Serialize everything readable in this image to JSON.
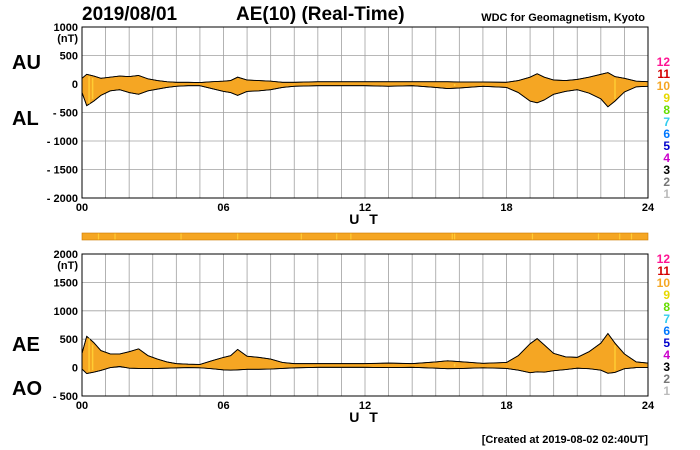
{
  "header": {
    "date": "2019/08/01",
    "title": "AE(10) (Real-Time)",
    "org": "WDC for Geomagnetism, Kyoto"
  },
  "footer": {
    "created": "[Created at 2019-08-02 02:40UT]"
  },
  "colors": {
    "fill": "#f5a623",
    "fill_bright": "#ffcc33",
    "grid": "#a0a0a0",
    "axis": "#000000"
  },
  "legend": {
    "items": [
      {
        "label": "12",
        "color": "#ff1493"
      },
      {
        "label": "11",
        "color": "#d40000"
      },
      {
        "label": "10",
        "color": "#f5a623"
      },
      {
        "label": "9",
        "color": "#e6d800"
      },
      {
        "label": "8",
        "color": "#66dd00"
      },
      {
        "label": "7",
        "color": "#33ccee"
      },
      {
        "label": "6",
        "color": "#0077ff"
      },
      {
        "label": "5",
        "color": "#0000cc"
      },
      {
        "label": "4",
        "color": "#cc00cc"
      },
      {
        "label": "3",
        "color": "#000000"
      },
      {
        "label": "2",
        "color": "#777777"
      },
      {
        "label": "1",
        "color": "#bbbbbb"
      }
    ]
  },
  "chart_data": [
    {
      "type": "area",
      "name": "AU / AL",
      "title": "AU / AL",
      "side_labels": {
        "upper": "AU",
        "lower": "AL"
      },
      "unit_label": "(nT)",
      "xlabel": "U T",
      "xlim": [
        0,
        24
      ],
      "ylim": [
        -2000,
        1000
      ],
      "yticks": [
        1000,
        500,
        0,
        -500,
        -1000,
        -1500,
        -2000
      ],
      "ytick_labels": [
        "1000",
        "500",
        "0",
        "- 500",
        "- 1000",
        "- 1500",
        "- 2000"
      ],
      "xticks": [
        0,
        6,
        12,
        18,
        24
      ],
      "xtick_labels": [
        "00",
        "06",
        "12",
        "18",
        "24"
      ],
      "x": [
        0,
        0.2,
        0.5,
        0.8,
        1.2,
        1.6,
        2.0,
        2.4,
        2.8,
        3.2,
        3.6,
        4.0,
        4.5,
        5.0,
        5.5,
        6.0,
        6.3,
        6.6,
        7.0,
        7.5,
        8.0,
        8.5,
        9.0,
        10.0,
        11.0,
        12.0,
        13.0,
        14.0,
        15.0,
        15.5,
        16.0,
        17.0,
        18.0,
        18.5,
        19.0,
        19.3,
        19.6,
        20.0,
        20.5,
        21.0,
        21.5,
        22.0,
        22.3,
        22.6,
        23.0,
        23.5,
        24.0
      ],
      "series": [
        {
          "name": "AU",
          "values": [
            100,
            170,
            140,
            100,
            120,
            140,
            130,
            150,
            90,
            60,
            40,
            30,
            30,
            25,
            40,
            50,
            60,
            120,
            70,
            60,
            50,
            30,
            30,
            40,
            40,
            40,
            40,
            40,
            40,
            40,
            35,
            35,
            30,
            60,
            120,
            180,
            120,
            70,
            60,
            80,
            120,
            170,
            200,
            130,
            100,
            50,
            40
          ]
        },
        {
          "name": "AL",
          "values": [
            -150,
            -380,
            -300,
            -200,
            -120,
            -100,
            -150,
            -180,
            -120,
            -90,
            -60,
            -40,
            -30,
            -30,
            -80,
            -130,
            -150,
            -200,
            -130,
            -120,
            -100,
            -60,
            -40,
            -30,
            -30,
            -30,
            -40,
            -30,
            -60,
            -80,
            -70,
            -40,
            -60,
            -150,
            -300,
            -330,
            -280,
            -180,
            -130,
            -100,
            -160,
            -260,
            -400,
            -300,
            -140,
            -50,
            -40
          ]
        }
      ]
    },
    {
      "type": "area",
      "name": "AE / AO",
      "title": "AE / AO",
      "side_labels": {
        "upper": "AE",
        "lower": "AO"
      },
      "unit_label": "(nT)",
      "xlabel": "U T",
      "xlim": [
        0,
        24
      ],
      "ylim": [
        -500,
        2000
      ],
      "yticks": [
        2000,
        1500,
        1000,
        500,
        0,
        -500
      ],
      "ytick_labels": [
        "2000",
        "1500",
        "1000",
        "500",
        "0",
        "- 500"
      ],
      "xticks": [
        0,
        6,
        12,
        18,
        24
      ],
      "xtick_labels": [
        "00",
        "06",
        "12",
        "18",
        "24"
      ],
      "x": [
        0,
        0.2,
        0.5,
        0.8,
        1.2,
        1.6,
        2.0,
        2.4,
        2.8,
        3.2,
        3.6,
        4.0,
        4.5,
        5.0,
        5.5,
        6.0,
        6.3,
        6.6,
        7.0,
        7.5,
        8.0,
        8.5,
        9.0,
        10.0,
        11.0,
        12.0,
        13.0,
        14.0,
        15.0,
        15.5,
        16.0,
        17.0,
        18.0,
        18.5,
        19.0,
        19.3,
        19.6,
        20.0,
        20.5,
        21.0,
        21.5,
        22.0,
        22.3,
        22.6,
        23.0,
        23.5,
        24.0
      ],
      "series": [
        {
          "name": "AE",
          "values": [
            250,
            550,
            440,
            300,
            240,
            240,
            280,
            330,
            210,
            150,
            100,
            70,
            60,
            55,
            120,
            180,
            210,
            320,
            200,
            180,
            150,
            90,
            70,
            70,
            70,
            70,
            80,
            70,
            100,
            120,
            105,
            75,
            90,
            210,
            420,
            510,
            400,
            250,
            190,
            180,
            280,
            430,
            600,
            430,
            240,
            100,
            80
          ]
        },
        {
          "name": "AO",
          "values": [
            -25,
            -105,
            -80,
            -50,
            0,
            20,
            -10,
            -15,
            -15,
            -15,
            -10,
            -5,
            0,
            -3,
            -20,
            -40,
            -45,
            -40,
            -30,
            -30,
            -25,
            -15,
            -5,
            5,
            5,
            5,
            0,
            5,
            -10,
            -20,
            -17,
            -3,
            -15,
            -45,
            -90,
            -75,
            -80,
            -55,
            -35,
            -10,
            -20,
            -45,
            -100,
            -85,
            -20,
            0,
            0
          ]
        }
      ]
    }
  ]
}
